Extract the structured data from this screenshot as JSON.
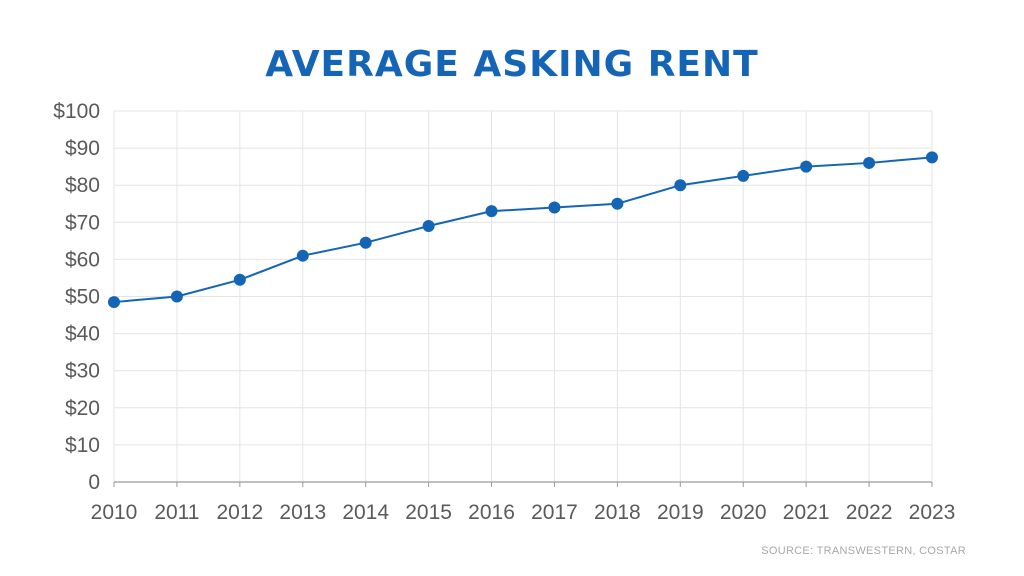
{
  "chart_data": {
    "type": "line",
    "title": "AVERAGE ASKING RENT",
    "xlabel": "",
    "ylabel": "",
    "categories": [
      "2010",
      "2011",
      "2012",
      "2013",
      "2014",
      "2015",
      "2016",
      "2017",
      "2018",
      "2019",
      "2020",
      "2021",
      "2022",
      "2023"
    ],
    "series": [
      {
        "values": [
          48.5,
          50,
          54.5,
          61,
          64.5,
          69,
          73,
          74,
          75,
          80,
          82.5,
          85,
          86,
          87.5
        ]
      }
    ],
    "ylim": [
      0,
      100
    ],
    "yticks": [
      0,
      10,
      20,
      30,
      40,
      50,
      60,
      70,
      80,
      90,
      100
    ],
    "ytick_labels": [
      "0",
      "$10",
      "$20",
      "$30",
      "$40",
      "$50",
      "$60",
      "$70",
      "$80",
      "$90",
      "$100"
    ],
    "grid": true,
    "legend": "none",
    "line_color": "#1565b6",
    "source": "SOURCE: TRANSWESTERN, COSTAR"
  }
}
